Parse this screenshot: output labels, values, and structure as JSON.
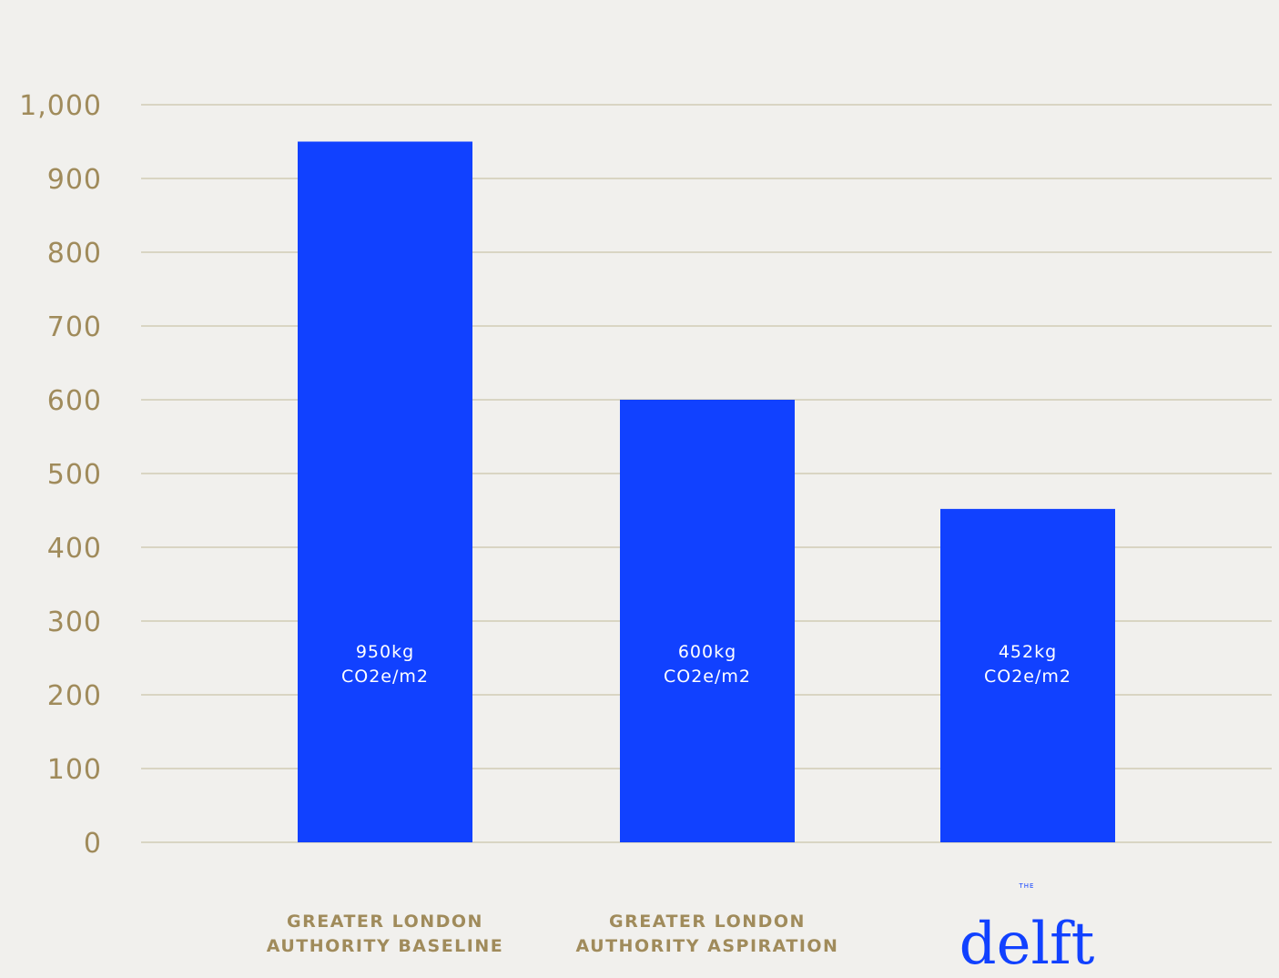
{
  "chart_data": {
    "type": "bar",
    "categories": [
      "GREATER LONDON\nAUTHORITY BASELINE",
      "GREATER LONDON\nAUTHORITY ASPIRATION",
      null
    ],
    "values": [
      950,
      600,
      452
    ],
    "value_labels": [
      "950kg\nCO2e/m2",
      "600kg\nCO2e/m2",
      "452kg\nCO2e/m2"
    ],
    "color": "#1141ff",
    "ylim": [
      0,
      1000
    ],
    "yticks": [
      0,
      100,
      200,
      300,
      400,
      500,
      600,
      700,
      800,
      900,
      {
        "value": 1000,
        "label": "1,000"
      }
    ],
    "grid": true,
    "logo": {
      "small": "THE",
      "name": "delft"
    }
  }
}
